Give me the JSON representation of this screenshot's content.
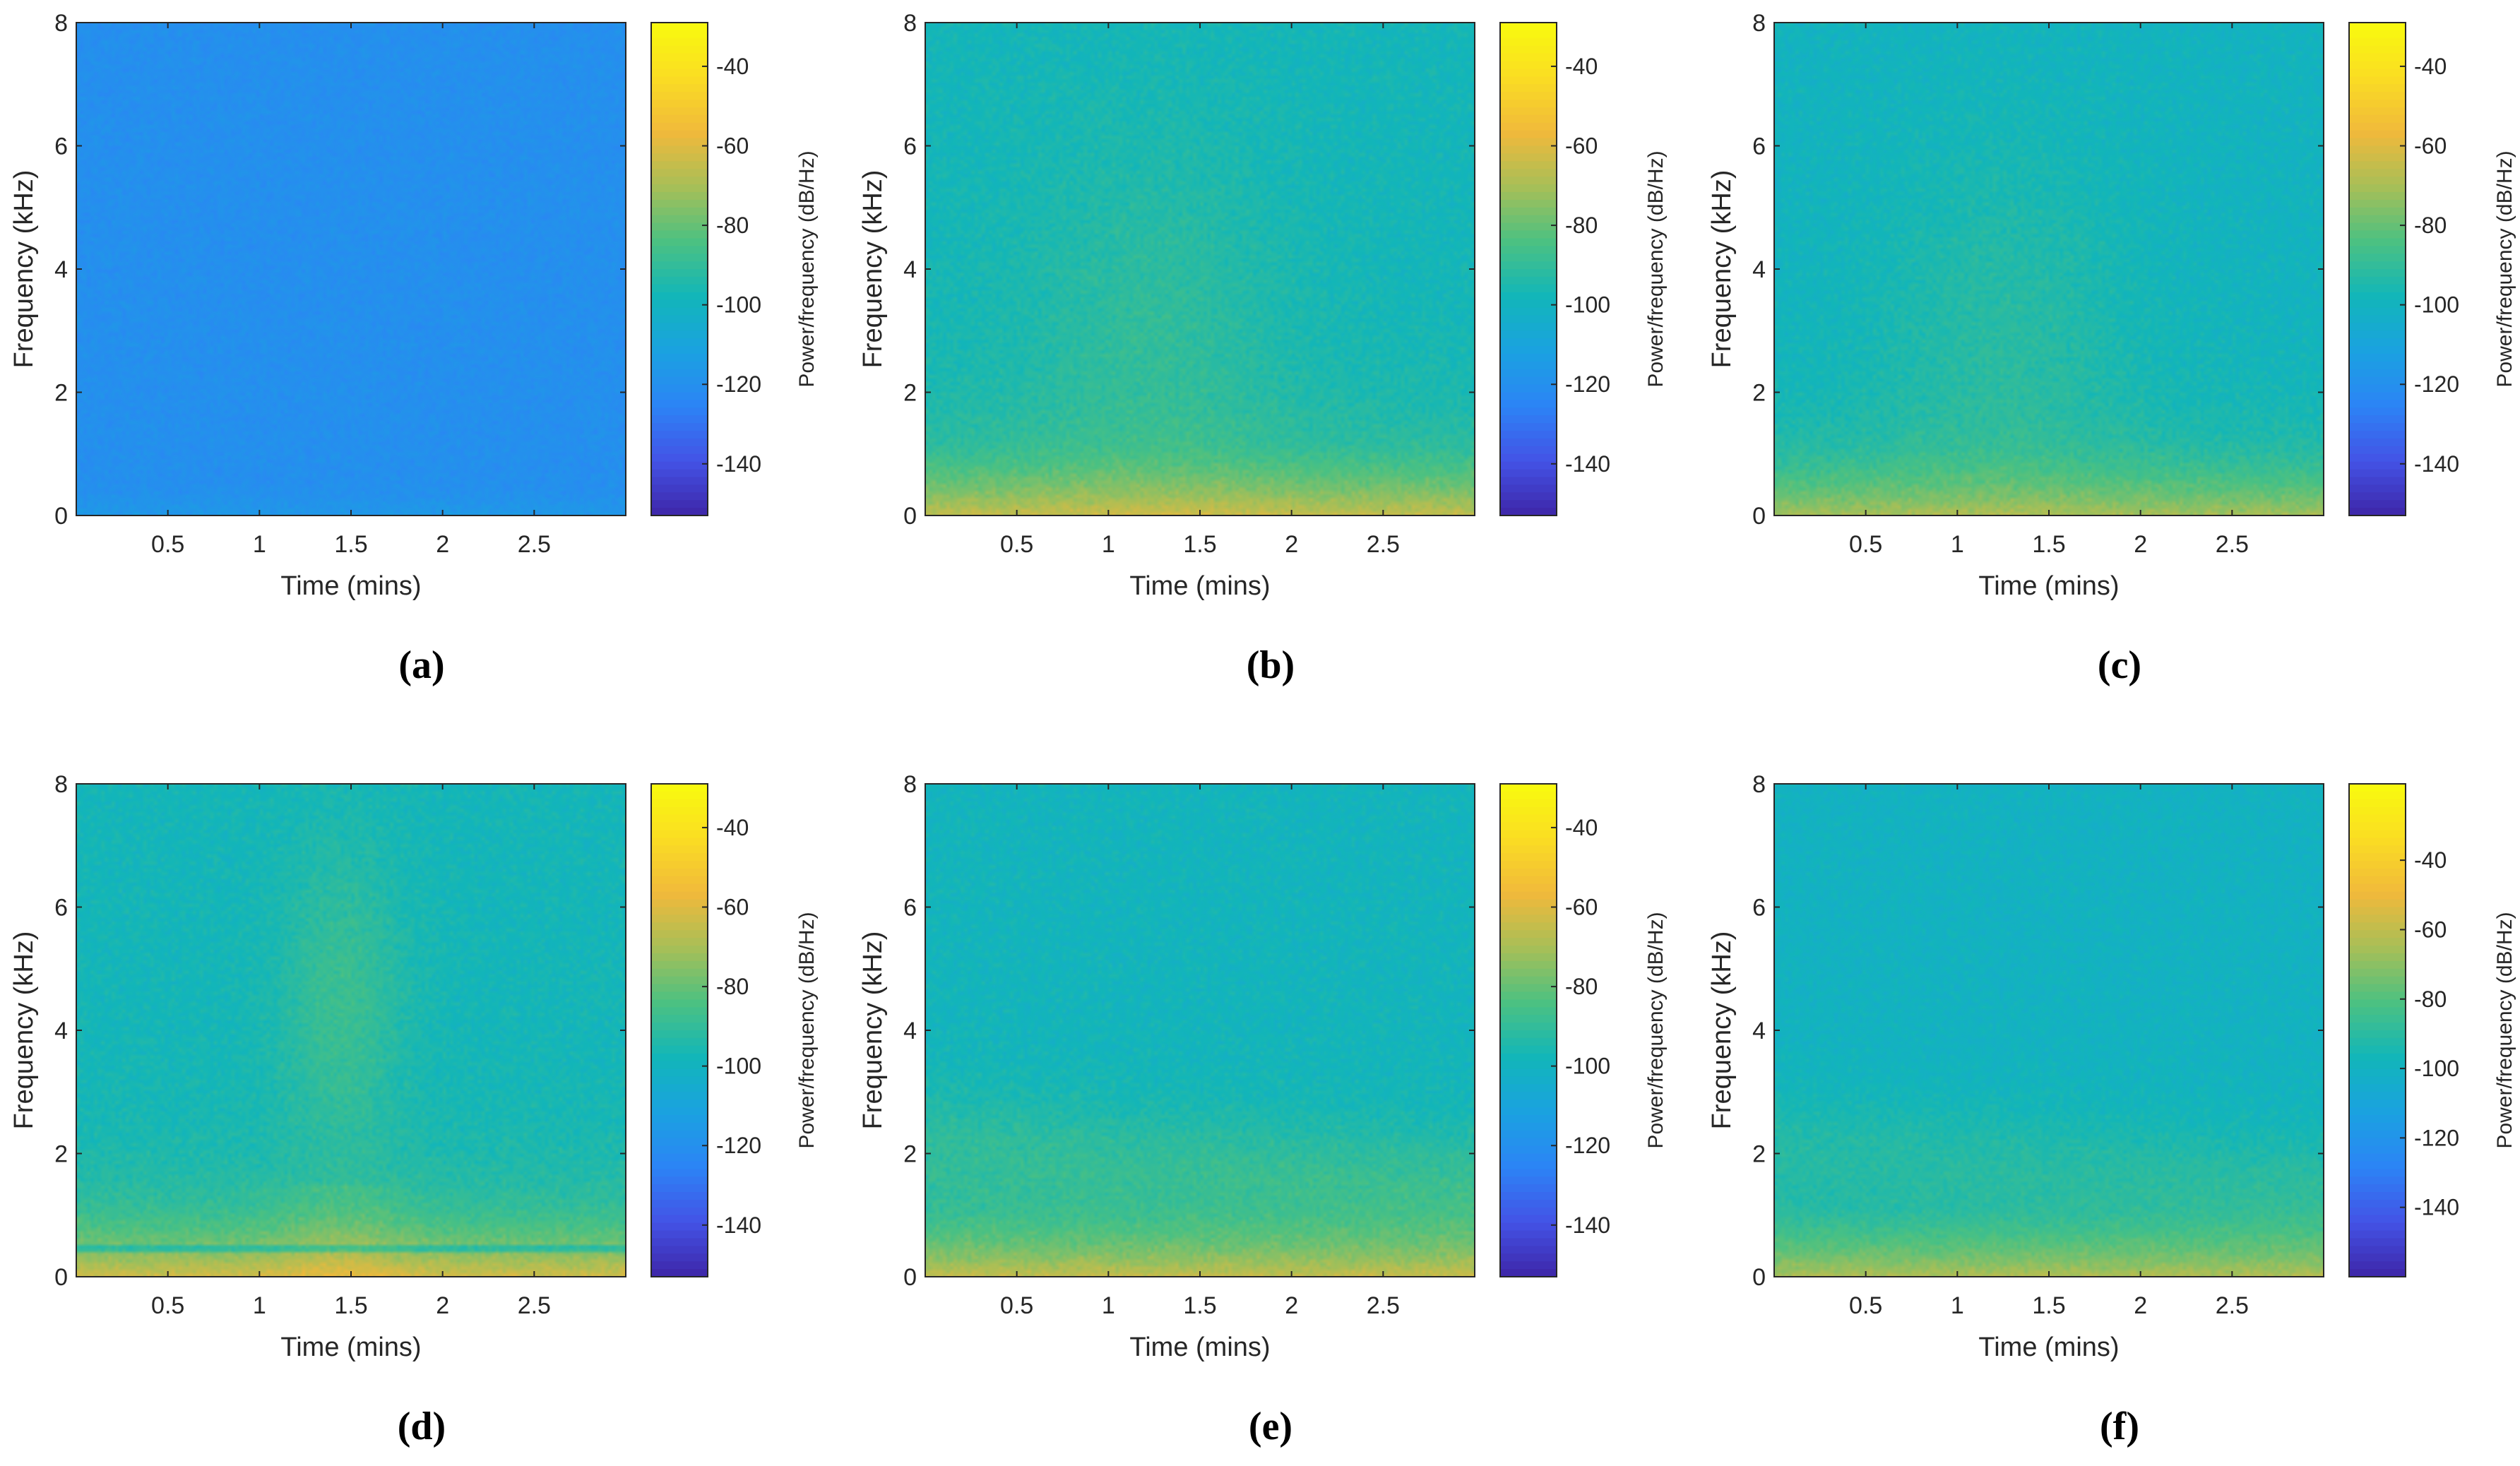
{
  "figure": {
    "colormap_stops": [
      "#3e26a8",
      "#4353e6",
      "#2c84f6",
      "#1aa2e0",
      "#12b6b9",
      "#4bc182",
      "#a7bf57",
      "#f1b93b",
      "#fadd23",
      "#f9fb0e"
    ]
  },
  "chart_data": [
    {
      "type": "heatmap",
      "caption": "(a)",
      "caption_label": "a",
      "xlabel": "Time (mins)",
      "ylabel": "Frequency (kHz)",
      "colorbar_label": "Power/frequency (dB/Hz)",
      "xlim": [
        0,
        3
      ],
      "ylim": [
        0,
        8
      ],
      "xticks": [
        "0.5",
        "1",
        "1.5",
        "2",
        "2.5"
      ],
      "yticks": [
        "0",
        "2",
        "4",
        "6",
        "8"
      ],
      "clim": [
        -153,
        -29
      ],
      "colorbar_ticks": [
        "-40",
        "-60",
        "-80",
        "-100",
        "-120",
        "-140"
      ],
      "description_levels": {
        "background_db": -120,
        "low_band_db": -116,
        "peak_db": -114
      },
      "pattern": "flat"
    },
    {
      "type": "heatmap",
      "caption": "(b)",
      "caption_label": "b",
      "xlabel": "Time (mins)",
      "ylabel": "Frequency (kHz)",
      "colorbar_label": "Power/frequency (dB/Hz)",
      "xlim": [
        0,
        3
      ],
      "ylim": [
        0,
        8
      ],
      "xticks": [
        "0.5",
        "1",
        "1.5",
        "2",
        "2.5"
      ],
      "yticks": [
        "0",
        "2",
        "4",
        "6",
        "8"
      ],
      "clim": [
        -153,
        -29
      ],
      "colorbar_ticks": [
        "-40",
        "-60",
        "-80",
        "-100",
        "-120",
        "-140"
      ],
      "description_levels": {
        "background_db": -98,
        "low_band_db": -72,
        "peak_db": -64
      },
      "pattern": "dome"
    },
    {
      "type": "heatmap",
      "caption": "(c)",
      "caption_label": "c",
      "xlabel": "Time (mins)",
      "ylabel": "Frequency (kHz)",
      "colorbar_label": "Power/frequency (dB/Hz)",
      "xlim": [
        0,
        3
      ],
      "ylim": [
        0,
        8
      ],
      "xticks": [
        "0.5",
        "1",
        "1.5",
        "2",
        "2.5"
      ],
      "yticks": [
        "0",
        "2",
        "4",
        "6",
        "8"
      ],
      "clim": [
        -153,
        -29
      ],
      "colorbar_ticks": [
        "-40",
        "-60",
        "-80",
        "-100",
        "-120",
        "-140"
      ],
      "description_levels": {
        "background_db": -100,
        "low_band_db": -76,
        "peak_db": -70
      },
      "pattern": "dome"
    },
    {
      "type": "heatmap",
      "caption": "(d)",
      "caption_label": "d",
      "xlabel": "Time (mins)",
      "ylabel": "Frequency (kHz)",
      "colorbar_label": "Power/frequency (dB/Hz)",
      "xlim": [
        0,
        3
      ],
      "ylim": [
        0,
        8
      ],
      "xticks": [
        "0.5",
        "1",
        "1.5",
        "2",
        "2.5"
      ],
      "yticks": [
        "0",
        "2",
        "4",
        "6",
        "8"
      ],
      "clim": [
        -153,
        -29
      ],
      "colorbar_ticks": [
        "-40",
        "-60",
        "-80",
        "-100",
        "-120",
        "-140"
      ],
      "description_levels": {
        "background_db": -98,
        "low_band_db": -68,
        "peak_db": -62
      },
      "pattern": "plume"
    },
    {
      "type": "heatmap",
      "caption": "(e)",
      "caption_label": "e",
      "xlabel": "Time (mins)",
      "ylabel": "Frequency (kHz)",
      "colorbar_label": "Power/frequency (dB/Hz)",
      "xlim": [
        0,
        3
      ],
      "ylim": [
        0,
        8
      ],
      "xticks": [
        "0.5",
        "1",
        "1.5",
        "2",
        "2.5"
      ],
      "yticks": [
        "0",
        "2",
        "4",
        "6",
        "8"
      ],
      "clim": [
        -153,
        -29
      ],
      "colorbar_ticks": [
        "-40",
        "-60",
        "-80",
        "-100",
        "-120",
        "-140"
      ],
      "description_levels": {
        "background_db": -99,
        "low_band_db": -70,
        "peak_db": -64
      },
      "pattern": "sweep"
    },
    {
      "type": "heatmap",
      "caption": "(f)",
      "caption_label": "f",
      "xlabel": "Time (mins)",
      "ylabel": "Frequency (kHz)",
      "colorbar_label": "Power/frequency (dB/Hz)",
      "xlim": [
        0,
        3
      ],
      "ylim": [
        0,
        8
      ],
      "xticks": [
        "0.5",
        "1",
        "1.5",
        "2",
        "2.5"
      ],
      "yticks": [
        "0",
        "2",
        "4",
        "6",
        "8"
      ],
      "clim": [
        -160,
        -18
      ],
      "colorbar_ticks": [
        "-40",
        "-60",
        "-80",
        "-100",
        "-120",
        "-140"
      ],
      "description_levels": {
        "background_db": -100,
        "low_band_db": -74,
        "peak_db": -62
      },
      "pattern": "sweep"
    }
  ]
}
